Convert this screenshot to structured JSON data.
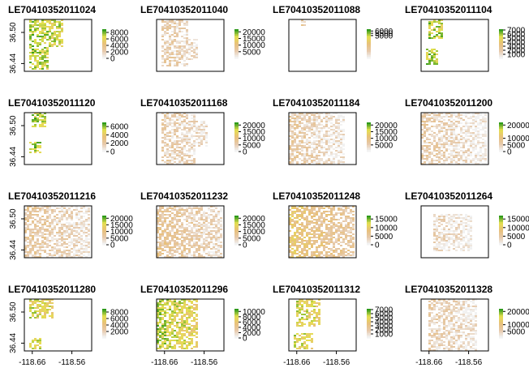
{
  "chart_data": {
    "type": "heatmap",
    "layout": {
      "rows": 4,
      "cols": 4
    },
    "x_axis": {
      "ticks": [
        -118.66,
        -118.56
      ],
      "tick_labels": [
        "-118.66",
        "-118.56"
      ],
      "xlim": [
        -118.68,
        -118.51
      ]
    },
    "y_axis": {
      "ticks": [
        36.44,
        36.5
      ],
      "tick_labels": [
        "36.44",
        "36.50"
      ],
      "ylim": [
        36.425,
        36.525
      ]
    },
    "palette": {
      "low": "#f2f2f2",
      "mid1": "#e6c8a8",
      "mid2": "#e8c07a",
      "mid3": "#e6e050",
      "high": "#2e9a1a",
      "frame": "#000000"
    },
    "panels": [
      {
        "title": "LE70410352011024",
        "legend_ticks": [
          {
            "label": "8000",
            "v": 8000
          },
          {
            "label": "6000",
            "v": 6000
          },
          {
            "label": "4000",
            "v": 4000
          },
          {
            "label": "2000",
            "v": 2000
          },
          {
            "label": "0",
            "v": 0
          }
        ],
        "legend_max": 9000,
        "coverage": [
          [
            0.0,
            0.5,
            0.05,
            0.55
          ],
          [
            0.45,
            0.95,
            0.05,
            0.35
          ]
        ],
        "tone": 0.85
      },
      {
        "title": "LE70410352011040",
        "legend_ticks": [
          {
            "label": "20000",
            "v": 20000
          },
          {
            "label": "15000",
            "v": 15000
          },
          {
            "label": "10000",
            "v": 10000
          },
          {
            "label": "5000",
            "v": 5000
          }
        ],
        "legend_max": 22000,
        "coverage": [
          [
            0.0,
            0.9,
            0.05,
            0.45
          ],
          [
            0.35,
            0.75,
            0.25,
            0.6
          ]
        ],
        "tone": 0.25
      },
      {
        "title": "LE70410352011088",
        "legend_ticks": [
          {
            "label": "6000",
            "v": 6000
          },
          {
            "label": "5500",
            "v": 5500
          },
          {
            "label": "5000",
            "v": 5000
          }
        ],
        "legend_max": 6400,
        "coverage": [
          [
            0.0,
            0.1,
            0.15,
            0.25
          ]
        ],
        "tone": 0.3
      },
      {
        "title": "LE70410352011104",
        "legend_ticks": [
          {
            "label": "7000",
            "v": 7000
          },
          {
            "label": "6000",
            "v": 6000
          },
          {
            "label": "5000",
            "v": 5000
          },
          {
            "label": "4000",
            "v": 4000
          },
          {
            "label": "3000",
            "v": 3000
          },
          {
            "label": "2000",
            "v": 2000
          },
          {
            "label": "1000",
            "v": 1000
          }
        ],
        "legend_max": 7200,
        "coverage": [
          [
            0.0,
            0.35,
            0.1,
            0.3
          ],
          [
            0.55,
            0.85,
            0.05,
            0.25
          ]
        ],
        "tone": 0.85
      },
      {
        "title": "LE70410352011120",
        "legend_ticks": [
          {
            "label": "6000",
            "v": 6000
          },
          {
            "label": "4000",
            "v": 4000
          },
          {
            "label": "2000",
            "v": 2000
          },
          {
            "label": "0",
            "v": 0
          }
        ],
        "legend_max": 7000,
        "coverage": [
          [
            0.0,
            0.25,
            0.1,
            0.3
          ],
          [
            0.55,
            0.75,
            0.05,
            0.25
          ]
        ],
        "tone": 0.85
      },
      {
        "title": "LE70410352011168",
        "legend_ticks": [
          {
            "label": "20000",
            "v": 20000
          },
          {
            "label": "15000",
            "v": 15000
          },
          {
            "label": "10000",
            "v": 10000
          },
          {
            "label": "5000",
            "v": 5000
          },
          {
            "label": "0",
            "v": 0
          }
        ],
        "legend_max": 22000,
        "coverage": [
          [
            0.0,
            1.0,
            0.05,
            0.55
          ],
          [
            0.15,
            0.65,
            0.3,
            0.75
          ]
        ],
        "tone": 0.25
      },
      {
        "title": "LE70410352011184",
        "legend_ticks": [
          {
            "label": "20000",
            "v": 20000
          },
          {
            "label": "15000",
            "v": 15000
          },
          {
            "label": "10000",
            "v": 10000
          },
          {
            "label": "5000",
            "v": 5000
          }
        ],
        "legend_max": 22000,
        "coverage": [
          [
            0.0,
            1.0,
            0.0,
            0.8
          ]
        ],
        "tone": 0.25
      },
      {
        "title": "LE70410352011200",
        "legend_ticks": [
          {
            "label": "20000",
            "v": 20000
          },
          {
            "label": "10000",
            "v": 10000
          },
          {
            "label": "5000",
            "v": 5000
          },
          {
            "label": "0",
            "v": 0
          }
        ],
        "legend_max": 22000,
        "coverage": [
          [
            0.0,
            1.0,
            0.0,
            0.95
          ]
        ],
        "tone": 0.25
      },
      {
        "title": "LE70410352011216",
        "legend_ticks": [
          {
            "label": "20000",
            "v": 20000
          },
          {
            "label": "15000",
            "v": 15000
          },
          {
            "label": "10000",
            "v": 10000
          },
          {
            "label": "5000",
            "v": 5000
          },
          {
            "label": "0",
            "v": 0
          }
        ],
        "legend_max": 22000,
        "coverage": [
          [
            0.0,
            1.0,
            0.0,
            0.95
          ]
        ],
        "tone": 0.3
      },
      {
        "title": "LE70410352011232",
        "legend_ticks": [
          {
            "label": "20000",
            "v": 20000
          },
          {
            "label": "15000",
            "v": 15000
          },
          {
            "label": "10000",
            "v": 10000
          },
          {
            "label": "5000",
            "v": 5000
          },
          {
            "label": "0",
            "v": 0
          }
        ],
        "legend_max": 22000,
        "coverage": [
          [
            0.0,
            1.0,
            0.0,
            0.95
          ]
        ],
        "tone": 0.35
      },
      {
        "title": "LE70410352011248",
        "legend_ticks": [
          {
            "label": "15000",
            "v": 15000
          },
          {
            "label": "10000",
            "v": 10000
          },
          {
            "label": "5000",
            "v": 5000
          },
          {
            "label": "0",
            "v": 0
          }
        ],
        "legend_max": 17000,
        "coverage": [
          [
            0.0,
            1.0,
            0.0,
            0.95
          ]
        ],
        "tone": 0.5
      },
      {
        "title": "LE70410352011264",
        "legend_ticks": [
          {
            "label": "15000",
            "v": 15000
          },
          {
            "label": "10000",
            "v": 10000
          },
          {
            "label": "5000",
            "v": 5000
          },
          {
            "label": "0",
            "v": 0
          }
        ],
        "legend_max": 17000,
        "coverage": [
          [
            0.15,
            0.85,
            0.15,
            0.75
          ]
        ],
        "tone": 0.2
      },
      {
        "title": "LE70410352011280",
        "legend_ticks": [
          {
            "label": "8000",
            "v": 8000
          },
          {
            "label": "6000",
            "v": 6000
          },
          {
            "label": "4000",
            "v": 4000
          },
          {
            "label": "2000",
            "v": 2000
          }
        ],
        "legend_max": 9000,
        "coverage": [
          [
            0.0,
            0.35,
            0.05,
            0.4
          ],
          [
            0.75,
            0.95,
            0.05,
            0.25
          ]
        ],
        "tone": 0.75
      },
      {
        "title": "LE70410352011296",
        "legend_ticks": [
          {
            "label": "10000",
            "v": 10000
          },
          {
            "label": "8000",
            "v": 8000
          },
          {
            "label": "6000",
            "v": 6000
          },
          {
            "label": "4000",
            "v": 4000
          },
          {
            "label": "2000",
            "v": 2000
          },
          {
            "label": "0",
            "v": 0
          }
        ],
        "legend_max": 11000,
        "coverage": [
          [
            0.0,
            0.95,
            0.0,
            0.6
          ]
        ],
        "tone": 0.8
      },
      {
        "title": "LE70410352011312",
        "legend_ticks": [
          {
            "label": "7000",
            "v": 7000
          },
          {
            "label": "6000",
            "v": 6000
          },
          {
            "label": "5000",
            "v": 5000
          },
          {
            "label": "4000",
            "v": 4000
          },
          {
            "label": "3000",
            "v": 3000
          },
          {
            "label": "2000",
            "v": 2000
          },
          {
            "label": "1000",
            "v": 1000
          }
        ],
        "legend_max": 7200,
        "coverage": [
          [
            0.0,
            0.5,
            0.1,
            0.45
          ],
          [
            0.65,
            0.95,
            0.05,
            0.35
          ]
        ],
        "tone": 0.75
      },
      {
        "title": "LE70410352011328",
        "legend_ticks": [
          {
            "label": "20000",
            "v": 20000
          },
          {
            "label": "10000",
            "v": 10000
          },
          {
            "label": "5000",
            "v": 5000
          }
        ],
        "legend_max": 22000,
        "coverage": [
          [
            0.0,
            1.0,
            0.1,
            0.8
          ]
        ],
        "tone": 0.25
      }
    ]
  }
}
